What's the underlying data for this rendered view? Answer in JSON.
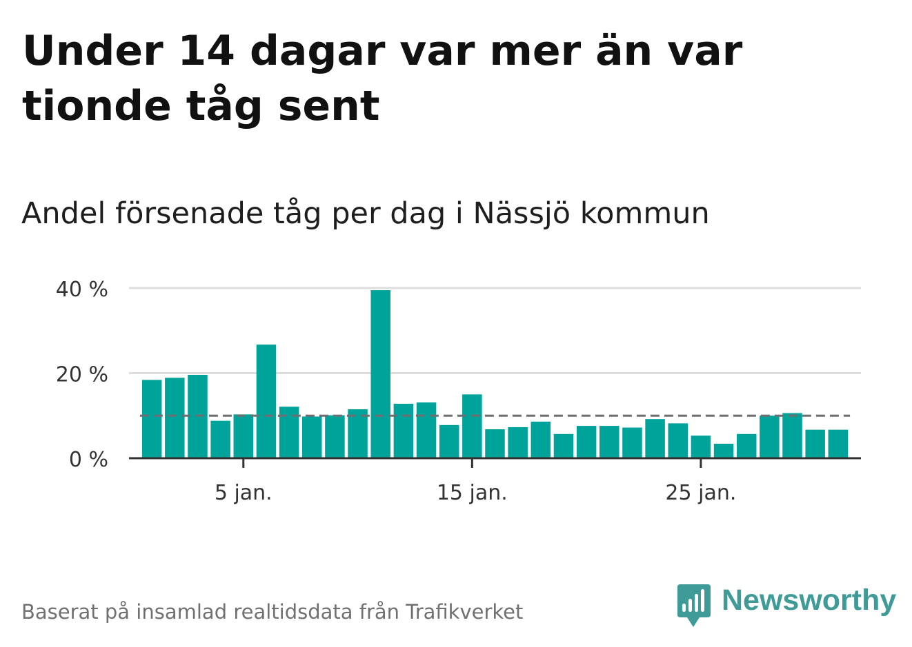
{
  "header": {
    "title": "Under 14 dagar var mer än var tionde tåg sent",
    "subtitle": "Andel försenade tåg per dag i Nässjö kommun"
  },
  "chart_data": {
    "type": "bar",
    "x": [
      1,
      2,
      3,
      4,
      5,
      6,
      7,
      8,
      9,
      10,
      11,
      12,
      13,
      14,
      15,
      16,
      17,
      18,
      19,
      20,
      21,
      22,
      23,
      24,
      25,
      26,
      27,
      28,
      29,
      30,
      31
    ],
    "values": [
      18.4,
      18.9,
      19.6,
      8.8,
      10.3,
      26.7,
      12.1,
      9.8,
      10.1,
      11.5,
      39.5,
      12.8,
      13.1,
      7.8,
      15.0,
      6.8,
      7.3,
      8.6,
      5.7,
      7.6,
      7.6,
      7.2,
      9.2,
      8.2,
      5.3,
      3.4,
      5.7,
      10.0,
      10.6,
      6.7,
      6.7
    ],
    "x_ticks": [
      5,
      15,
      25
    ],
    "x_tick_labels": [
      "5 jan.",
      "15 jan.",
      "25 jan."
    ],
    "y_ticks": [
      0,
      20,
      40
    ],
    "y_tick_labels": [
      "0 %",
      "20 %",
      "40 %"
    ],
    "xlim": [
      0,
      32
    ],
    "ylim": [
      0,
      40
    ],
    "reference_line": 10,
    "grid": true,
    "bar_color": "#00a39a",
    "reference_line_color": "#6e6e72",
    "grid_color": "#dddddd",
    "axis_color": "#333333"
  },
  "footer": {
    "source": "Baserat på insamlad realtidsdata från Trafikverket",
    "brand": "Newsworthy",
    "brand_icon": "newsworthy-logo-icon",
    "brand_color": "#3e9b97"
  }
}
